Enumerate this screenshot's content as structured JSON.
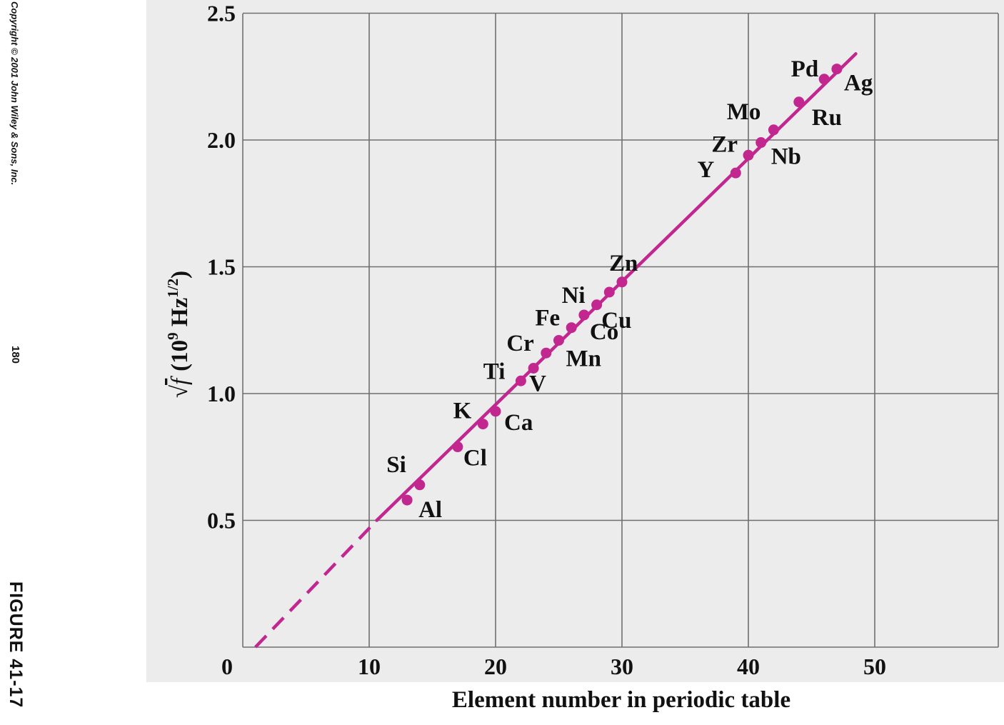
{
  "side_caption": {
    "copyright": "Copyright © 2001 John Wiley & Sons, Inc.",
    "page_number": "180",
    "figure_label": "FIGURE 41-17"
  },
  "colors": {
    "plot_background": "#ececed",
    "grid": "#6f6f6f",
    "series": "#c2268f",
    "text": "#111111"
  },
  "chart_data": {
    "type": "line",
    "xlabel": "Element number in periodic table",
    "ylabel_parts": {
      "root_symbol": "√",
      "variable": "f",
      "open": "(10",
      "exp1": "9",
      "unit": " Hz",
      "exp2": "1/2",
      "close": ")"
    },
    "xlim": [
      0,
      60
    ],
    "ylim": [
      0,
      2.5
    ],
    "x_ticks": [
      0,
      10,
      20,
      30,
      40,
      50
    ],
    "x_tick_labels": [
      "0",
      "10",
      "20",
      "30",
      "40",
      "50"
    ],
    "y_ticks": [
      0.5,
      1.0,
      1.5,
      2.0,
      2.5
    ],
    "y_tick_labels": [
      "0.5",
      "1.0",
      "1.5",
      "2.0",
      "2.5"
    ],
    "grid": true,
    "fit_line": {
      "solid": [
        [
          10.6,
          0.5
        ],
        [
          48.5,
          2.34
        ]
      ],
      "dashed": [
        [
          1.0,
          0.0
        ],
        [
          10.6,
          0.5
        ]
      ]
    },
    "series": [
      {
        "points": [
          {
            "symbol": "Al",
            "x": 13,
            "y": 0.58
          },
          {
            "symbol": "Si",
            "x": 14,
            "y": 0.64
          },
          {
            "symbol": "Cl",
            "x": 17,
            "y": 0.79
          },
          {
            "symbol": "K",
            "x": 19,
            "y": 0.88
          },
          {
            "symbol": "Ca",
            "x": 20,
            "y": 0.93
          },
          {
            "symbol": "Ti",
            "x": 22,
            "y": 1.05
          },
          {
            "symbol": "V",
            "x": 23,
            "y": 1.1
          },
          {
            "symbol": "Cr",
            "x": 24,
            "y": 1.16
          },
          {
            "symbol": "Mn",
            "x": 25,
            "y": 1.21
          },
          {
            "symbol": "Fe",
            "x": 26,
            "y": 1.26
          },
          {
            "symbol": "Co",
            "x": 27,
            "y": 1.31
          },
          {
            "symbol": "Ni",
            "x": 28,
            "y": 1.35
          },
          {
            "symbol": "Cu",
            "x": 29,
            "y": 1.4
          },
          {
            "symbol": "Zn",
            "x": 30,
            "y": 1.44
          },
          {
            "symbol": "Y",
            "x": 39,
            "y": 1.87
          },
          {
            "symbol": "Zr",
            "x": 40,
            "y": 1.94
          },
          {
            "symbol": "Nb",
            "x": 41,
            "y": 1.99
          },
          {
            "symbol": "Mo",
            "x": 42,
            "y": 2.04
          },
          {
            "symbol": "Ru",
            "x": 44,
            "y": 2.15
          },
          {
            "symbol": "Pd",
            "x": 46,
            "y": 2.24
          },
          {
            "symbol": "Ag",
            "x": 47,
            "y": 2.28
          }
        ]
      }
    ]
  }
}
